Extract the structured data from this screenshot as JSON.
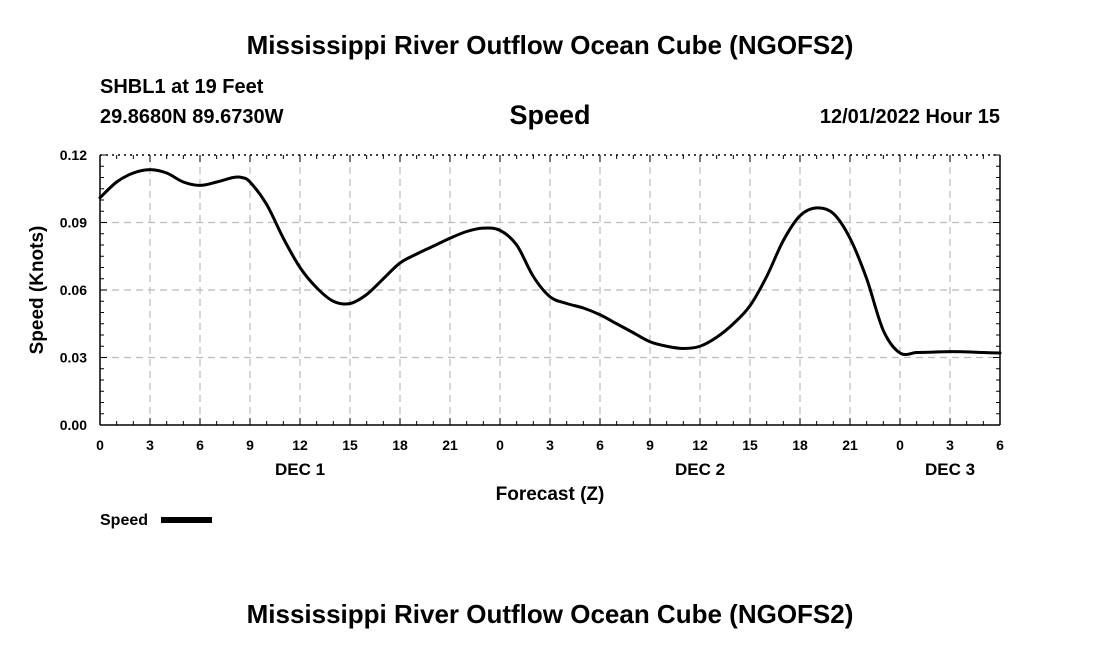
{
  "title": "Mississippi River Outflow Ocean Cube (NGOFS2)",
  "station": "SHBL1 at 19 Feet",
  "coordinates": "29.8680N  89.6730W",
  "variable": "Speed",
  "datetime": "12/01/2022 Hour 15",
  "footer_title": "Mississippi River Outflow Ocean Cube (NGOFS2)",
  "chart_data": {
    "type": "line",
    "title": "Speed",
    "xlabel": "Forecast (Z)",
    "ylabel": "Speed (Knots)",
    "xlim": [
      0,
      54
    ],
    "ylim": [
      0,
      0.12
    ],
    "yticks": [
      0,
      0.03,
      0.06,
      0.09,
      0.12
    ],
    "ytick_labels": [
      "0.00",
      "0.03",
      "0.06",
      "0.09",
      "0.12"
    ],
    "xticks": [
      0,
      3,
      6,
      9,
      12,
      15,
      18,
      21,
      24,
      27,
      30,
      33,
      36,
      39,
      42,
      45,
      48,
      51,
      54
    ],
    "xtick_labels": [
      "0",
      "3",
      "6",
      "9",
      "12",
      "15",
      "18",
      "21",
      "0",
      "3",
      "6",
      "9",
      "12",
      "15",
      "18",
      "21",
      "0",
      "3",
      "6"
    ],
    "date_labels": [
      {
        "label": "DEC 1",
        "x": 12
      },
      {
        "label": "DEC 2",
        "x": 36
      },
      {
        "label": "DEC 3",
        "x": 51
      }
    ],
    "grid": true,
    "legend": {
      "label": "Speed",
      "position": "bottom-left"
    },
    "series": [
      {
        "name": "Speed",
        "color": "#000000",
        "x": [
          0,
          1,
          2,
          3,
          4,
          5,
          6,
          7,
          8,
          8.5,
          9,
          10,
          11,
          12,
          13,
          14,
          15,
          16,
          17,
          18,
          19,
          20,
          21,
          22,
          23,
          24,
          25,
          26,
          27,
          28,
          29,
          30,
          31,
          32,
          33,
          34,
          35,
          36,
          37,
          38,
          39,
          40,
          41,
          42,
          43,
          44,
          45,
          46,
          47,
          48,
          49,
          50,
          51,
          52,
          53,
          54
        ],
        "values": [
          0.101,
          0.108,
          0.112,
          0.1135,
          0.112,
          0.108,
          0.1065,
          0.108,
          0.11,
          0.11,
          0.108,
          0.098,
          0.083,
          0.07,
          0.061,
          0.055,
          0.054,
          0.058,
          0.065,
          0.072,
          0.076,
          0.0795,
          0.083,
          0.086,
          0.0875,
          0.0865,
          0.08,
          0.066,
          0.057,
          0.054,
          0.052,
          0.049,
          0.045,
          0.041,
          0.037,
          0.035,
          0.034,
          0.035,
          0.039,
          0.045,
          0.053,
          0.066,
          0.082,
          0.093,
          0.0965,
          0.094,
          0.083,
          0.065,
          0.042,
          0.032,
          0.0322,
          0.0324,
          0.0326,
          0.0325,
          0.0322,
          0.032
        ]
      }
    ]
  }
}
